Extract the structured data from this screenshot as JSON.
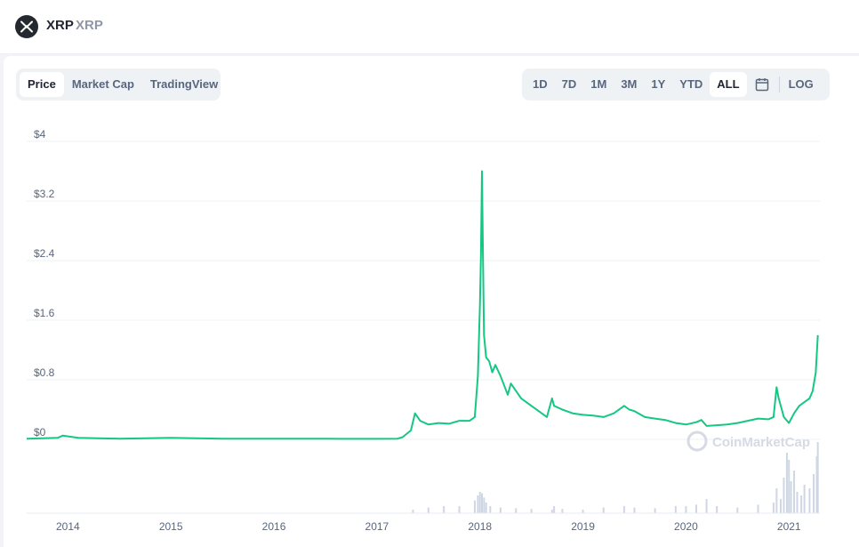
{
  "header": {
    "name": "XRP",
    "symbol": "XRP",
    "logo_icon": "xrp-logo-icon"
  },
  "tabs_left": [
    {
      "label": "Price",
      "active": true
    },
    {
      "label": "Market Cap",
      "active": false
    },
    {
      "label": "TradingView",
      "active": false
    }
  ],
  "tabs_right": [
    {
      "label": "1D",
      "active": false
    },
    {
      "label": "7D",
      "active": false
    },
    {
      "label": "1M",
      "active": false
    },
    {
      "label": "3M",
      "active": false
    },
    {
      "label": "1Y",
      "active": false
    },
    {
      "label": "YTD",
      "active": false
    },
    {
      "label": "ALL",
      "active": true
    }
  ],
  "calendar_icon": "calendar-icon",
  "log_label": "LOG",
  "watermark": "CoinMarketCap",
  "colors": {
    "line": "#16c784",
    "volume": "#cfd6e4",
    "grid": "#eff2f5",
    "axis_text": "#58667e"
  },
  "chart_data": {
    "type": "line",
    "x_unit": "year",
    "y_unit": "USD",
    "yticks": [
      "$0",
      "$0.8",
      "$1.6",
      "$2.4",
      "$3.2",
      "$4"
    ],
    "ytick_values": [
      0,
      0.8,
      1.6,
      2.4,
      3.2,
      4
    ],
    "ylim": [
      0,
      4
    ],
    "xlim": [
      2013.6,
      2021.3
    ],
    "xticks": [
      "2014",
      "2015",
      "2016",
      "2017",
      "2018",
      "2019",
      "2020",
      "2021"
    ],
    "xtick_values": [
      2014,
      2015,
      2016,
      2017,
      2018,
      2019,
      2020,
      2021
    ],
    "grid": true,
    "series": [
      {
        "x": [
          2013.6,
          2013.9,
          2013.95,
          2014.1,
          2014.5,
          2015.0,
          2015.5,
          2016.0,
          2016.5,
          2017.0,
          2017.2,
          2017.25,
          2017.33,
          2017.37,
          2017.42,
          2017.5,
          2017.6,
          2017.7,
          2017.8,
          2017.9,
          2017.95,
          2017.98,
          2018.0,
          2018.01,
          2018.02,
          2018.03,
          2018.04,
          2018.06,
          2018.09,
          2018.12,
          2018.15,
          2018.2,
          2018.27,
          2018.3,
          2018.4,
          2018.5,
          2018.6,
          2018.65,
          2018.7,
          2018.72,
          2018.8,
          2018.9,
          2019.0,
          2019.1,
          2019.2,
          2019.3,
          2019.4,
          2019.45,
          2019.5,
          2019.6,
          2019.7,
          2019.8,
          2019.9,
          2020.0,
          2020.1,
          2020.15,
          2020.2,
          2020.3,
          2020.4,
          2020.5,
          2020.6,
          2020.7,
          2020.8,
          2020.85,
          2020.88,
          2020.9,
          2020.95,
          2021.0,
          2021.05,
          2021.1,
          2021.15,
          2021.2,
          2021.23,
          2021.26,
          2021.28
        ],
        "y": [
          0.01,
          0.02,
          0.05,
          0.02,
          0.01,
          0.02,
          0.01,
          0.01,
          0.008,
          0.007,
          0.01,
          0.03,
          0.12,
          0.35,
          0.25,
          0.2,
          0.22,
          0.21,
          0.25,
          0.25,
          0.3,
          0.85,
          1.8,
          2.5,
          3.6,
          2.4,
          1.4,
          1.1,
          1.05,
          0.9,
          1.0,
          0.85,
          0.6,
          0.75,
          0.55,
          0.45,
          0.35,
          0.3,
          0.55,
          0.45,
          0.4,
          0.35,
          0.33,
          0.32,
          0.3,
          0.35,
          0.45,
          0.4,
          0.38,
          0.3,
          0.28,
          0.26,
          0.22,
          0.2,
          0.23,
          0.26,
          0.18,
          0.19,
          0.2,
          0.22,
          0.25,
          0.28,
          0.27,
          0.3,
          0.7,
          0.55,
          0.3,
          0.22,
          0.35,
          0.45,
          0.5,
          0.55,
          0.65,
          0.9,
          1.4
        ]
      }
    ],
    "volume": {
      "x": [
        2017.35,
        2017.5,
        2017.65,
        2017.8,
        2017.95,
        2017.98,
        2018.0,
        2018.02,
        2018.04,
        2018.06,
        2018.1,
        2018.2,
        2018.35,
        2018.5,
        2018.7,
        2018.72,
        2018.8,
        2019.0,
        2019.2,
        2019.4,
        2019.5,
        2019.7,
        2019.9,
        2020.0,
        2020.1,
        2020.2,
        2020.3,
        2020.5,
        2020.7,
        2020.85,
        2020.88,
        2020.92,
        2020.95,
        2020.98,
        2021.0,
        2021.02,
        2021.05,
        2021.08,
        2021.12,
        2021.15,
        2021.2,
        2021.24,
        2021.27,
        2021.28
      ],
      "v": [
        0.05,
        0.08,
        0.1,
        0.1,
        0.18,
        0.25,
        0.3,
        0.28,
        0.22,
        0.15,
        0.1,
        0.08,
        0.07,
        0.06,
        0.05,
        0.1,
        0.06,
        0.05,
        0.08,
        0.1,
        0.08,
        0.07,
        0.1,
        0.1,
        0.12,
        0.2,
        0.1,
        0.08,
        0.12,
        0.15,
        0.35,
        0.2,
        0.5,
        0.85,
        0.75,
        0.45,
        0.6,
        0.3,
        0.25,
        0.4,
        0.35,
        0.55,
        0.8,
        1.0
      ]
    }
  }
}
